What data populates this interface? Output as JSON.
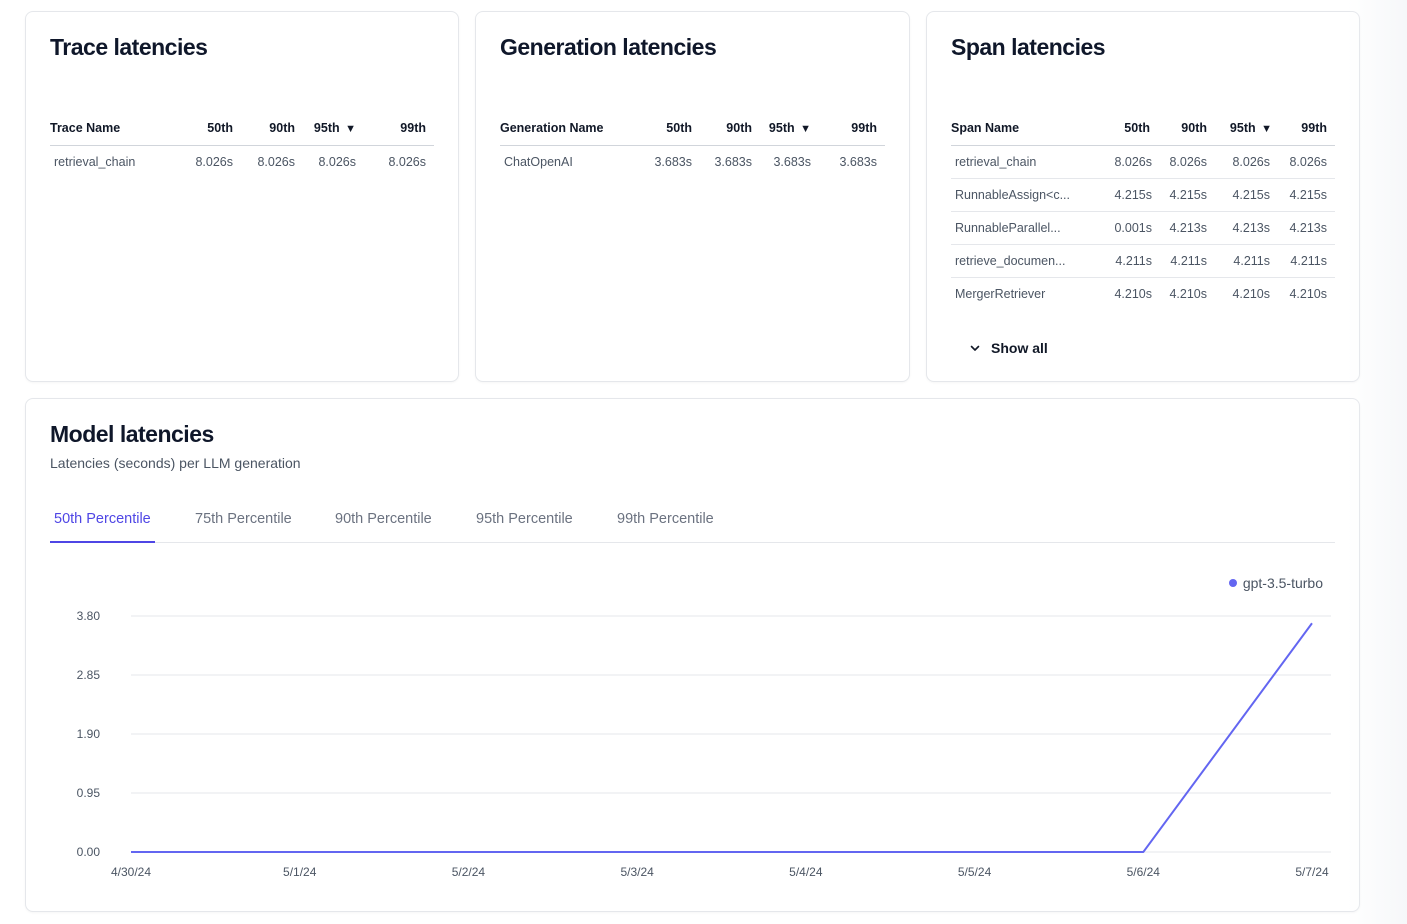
{
  "trace": {
    "title": "Trace latencies",
    "headers": [
      "Trace Name",
      "50th",
      "90th",
      "95th",
      "99th"
    ],
    "sort_icon": "▼",
    "rows": [
      {
        "name": "retrieval_chain",
        "p50": "8.026s",
        "p90": "8.026s",
        "p95": "8.026s",
        "p99": "8.026s"
      }
    ]
  },
  "generation": {
    "title": "Generation latencies",
    "headers": [
      "Generation Name",
      "50th",
      "90th",
      "95th",
      "99th"
    ],
    "sort_icon": "▼",
    "rows": [
      {
        "name": "ChatOpenAI",
        "p50": "3.683s",
        "p90": "3.683s",
        "p95": "3.683s",
        "p99": "3.683s"
      }
    ]
  },
  "span": {
    "title": "Span latencies",
    "headers": [
      "Span Name",
      "50th",
      "90th",
      "95th",
      "99th"
    ],
    "sort_icon": "▼",
    "rows": [
      {
        "name": "retrieval_chain",
        "p50": "8.026s",
        "p90": "8.026s",
        "p95": "8.026s",
        "p99": "8.026s"
      },
      {
        "name": "RunnableAssign<c...",
        "p50": "4.215s",
        "p90": "4.215s",
        "p95": "4.215s",
        "p99": "4.215s"
      },
      {
        "name": "RunnableParallel...",
        "p50": "0.001s",
        "p90": "4.213s",
        "p95": "4.213s",
        "p99": "4.213s"
      },
      {
        "name": "retrieve_documen...",
        "p50": "4.211s",
        "p90": "4.211s",
        "p95": "4.211s",
        "p99": "4.211s"
      },
      {
        "name": "MergerRetriever",
        "p50": "4.210s",
        "p90": "4.210s",
        "p95": "4.210s",
        "p99": "4.210s"
      }
    ],
    "show_all_label": "Show all"
  },
  "model": {
    "title": "Model latencies",
    "subtitle": "Latencies (seconds) per LLM generation",
    "tabs": [
      "50th Percentile",
      "75th Percentile",
      "90th Percentile",
      "95th Percentile",
      "99th Percentile"
    ],
    "active_tab": 0
  },
  "chart_data": {
    "type": "line",
    "x": [
      "4/30/24",
      "5/1/24",
      "5/2/24",
      "5/3/24",
      "5/4/24",
      "5/5/24",
      "5/6/24",
      "5/7/24"
    ],
    "series": [
      {
        "name": "gpt-3.5-turbo",
        "color": "#6366f1",
        "values": [
          0,
          0,
          0,
          0,
          0,
          0,
          0,
          3.683
        ]
      }
    ],
    "yticks": [
      "0.00",
      "0.95",
      "1.90",
      "2.85",
      "3.80"
    ],
    "ylim": [
      0,
      3.8
    ],
    "legend_position": "top-right",
    "grid": true
  }
}
